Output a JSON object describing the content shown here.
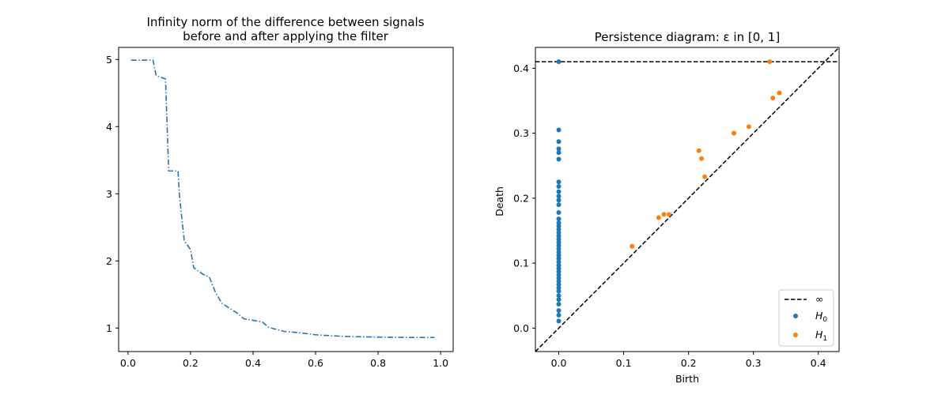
{
  "colors": {
    "h0": "#1f77b4",
    "h1": "#ff7f0e",
    "line": "#1f77b4",
    "diagonal": "#000000"
  },
  "chart_data": [
    {
      "type": "line",
      "title_line1": "Infinity norm of the difference between signals",
      "title_line2": "before and after applying the filter",
      "xlabel": "",
      "ylabel": "",
      "xlim": [
        -0.03,
        1.04
      ],
      "ylim": [
        0.65,
        5.18
      ],
      "xticks": [
        "0.0",
        "0.2",
        "0.4",
        "0.6",
        "0.8",
        "1.0"
      ],
      "yticks": [
        "1",
        "2",
        "3",
        "4",
        "5"
      ],
      "line_style": "dash-dot",
      "x": [
        0.01,
        0.08,
        0.09,
        0.12,
        0.13,
        0.135,
        0.16,
        0.165,
        0.18,
        0.2,
        0.21,
        0.24,
        0.26,
        0.28,
        0.3,
        0.33,
        0.35,
        0.37,
        0.43,
        0.45,
        0.5,
        0.55,
        0.6,
        0.65,
        0.7,
        0.8,
        0.9,
        0.98
      ],
      "y": [
        4.99,
        4.99,
        4.76,
        4.71,
        3.34,
        3.34,
        3.34,
        2.95,
        2.3,
        2.17,
        1.9,
        1.8,
        1.76,
        1.53,
        1.37,
        1.28,
        1.22,
        1.14,
        1.09,
        1.01,
        0.95,
        0.93,
        0.9,
        0.885,
        0.875,
        0.865,
        0.86,
        0.86
      ]
    },
    {
      "type": "scatter",
      "title": "Persistence diagram: ε in [0, 1]",
      "xlabel": "Birth",
      "ylabel": "Death",
      "xlim": [
        -0.036,
        0.432
      ],
      "ylim": [
        -0.036,
        0.432
      ],
      "xticks": [
        "0.0",
        "0.1",
        "0.2",
        "0.3",
        "0.4"
      ],
      "yticks": [
        "0.0",
        "0.1",
        "0.2",
        "0.3",
        "0.4"
      ],
      "infinity_line": 0.41,
      "legend": {
        "position": "lower-right",
        "infinity": "∞",
        "h0": "H",
        "h0_sub": "0",
        "h1": "H",
        "h1_sub": "1"
      },
      "series": [
        {
          "label": "H0",
          "points": [
            [
              0,
              0.41
            ],
            [
              0,
              0.305
            ],
            [
              0,
              0.287
            ],
            [
              0,
              0.276
            ],
            [
              0,
              0.27
            ],
            [
              0,
              0.26
            ],
            [
              0,
              0.225
            ],
            [
              0,
              0.218
            ],
            [
              0,
              0.21
            ],
            [
              0,
              0.203
            ],
            [
              0,
              0.197
            ],
            [
              0,
              0.19
            ],
            [
              0,
              0.178
            ],
            [
              0,
              0.168
            ],
            [
              0,
              0.162
            ],
            [
              0,
              0.157
            ],
            [
              0,
              0.152
            ],
            [
              0,
              0.147
            ],
            [
              0,
              0.142
            ],
            [
              0,
              0.137
            ],
            [
              0,
              0.132
            ],
            [
              0,
              0.127
            ],
            [
              0,
              0.122
            ],
            [
              0,
              0.117
            ],
            [
              0,
              0.112
            ],
            [
              0,
              0.107
            ],
            [
              0,
              0.102
            ],
            [
              0,
              0.097
            ],
            [
              0,
              0.092
            ],
            [
              0,
              0.087
            ],
            [
              0,
              0.082
            ],
            [
              0,
              0.077
            ],
            [
              0,
              0.072
            ],
            [
              0,
              0.067
            ],
            [
              0,
              0.062
            ],
            [
              0,
              0.057
            ],
            [
              0,
              0.05
            ],
            [
              0,
              0.044
            ],
            [
              0,
              0.037
            ],
            [
              0,
              0.027
            ],
            [
              0,
              0.02
            ],
            [
              0,
              0.011
            ]
          ]
        },
        {
          "label": "H1",
          "points": [
            [
              0.113,
              0.126
            ],
            [
              0.154,
              0.17
            ],
            [
              0.162,
              0.175
            ],
            [
              0.17,
              0.175
            ],
            [
              0.216,
              0.273
            ],
            [
              0.22,
              0.261
            ],
            [
              0.225,
              0.233
            ],
            [
              0.27,
              0.3
            ],
            [
              0.293,
              0.31
            ],
            [
              0.325,
              0.41
            ],
            [
              0.33,
              0.354
            ],
            [
              0.34,
              0.362
            ]
          ]
        }
      ]
    }
  ]
}
